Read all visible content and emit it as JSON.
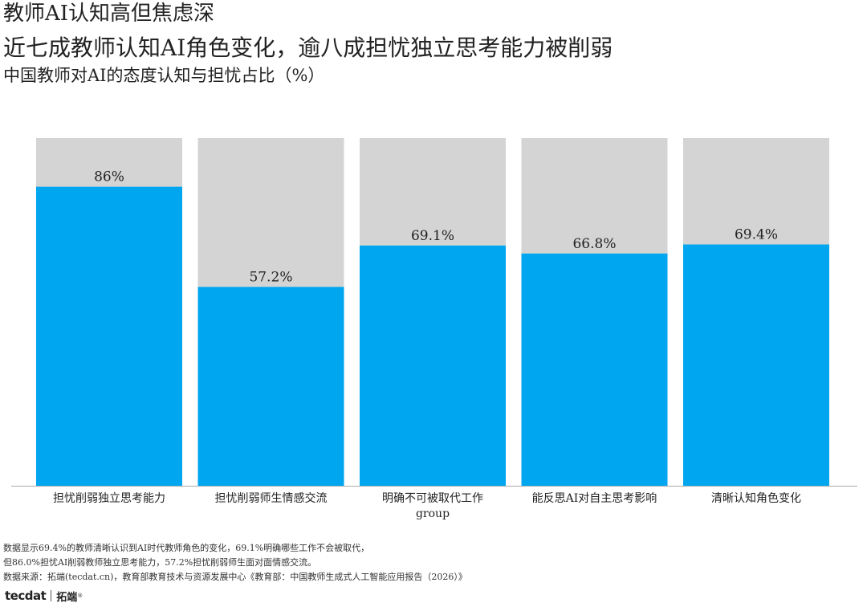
{
  "header": {
    "title": "教师AI认知高但焦虑深",
    "subtitle": "近七成教师认知AI角色变化，逾八成担忧独立思考能力被削弱",
    "caption": "中国教师对AI的态度认知与担忧占比（%）"
  },
  "colors": {
    "bar": "#00A6F0",
    "background_bar": "#D4D4D4",
    "axis": "#AAAAAA"
  },
  "chart_data": {
    "type": "bar",
    "categories": [
      "担忧削弱独立思考能力",
      "担忧削弱师生情感交流",
      "明确不可被取代工作 group",
      "能反思AI对自主思考影响",
      "清晰认知角色变化"
    ],
    "category_lines": [
      [
        "担忧削弱独立思考能力"
      ],
      [
        "担忧削弱师生情感交流"
      ],
      [
        "明确不可被取代工作",
        "group"
      ],
      [
        "能反思AI对自主思考影响"
      ],
      [
        "清晰认知角色变化"
      ]
    ],
    "values": [
      86,
      57.2,
      69.1,
      66.8,
      69.4
    ],
    "value_labels": [
      "86%",
      "57.2%",
      "69.1%",
      "66.8%",
      "69.4%"
    ],
    "ylim": [
      0,
      100
    ],
    "grid": false,
    "legend": "none",
    "xlabel": "",
    "ylabel": ""
  },
  "footer": {
    "notes": [
      "数据显示69.4%的教师清晰认识到AI时代教师角色的变化，69.1%明确哪些工作不会被取代，",
      "但86.0%担忧AI削弱教师独立思考能力，57.2%担忧削弱师生面对面情感交流。",
      "数据来源：拓端(tecdat.cn)，教育部教育技术与资源发展中心《教育部：中国教师生成式人工智能应用报告（2026）》"
    ],
    "logo_latin": "tecdat",
    "logo_cn": "拓端",
    "logo_mark": "®"
  }
}
